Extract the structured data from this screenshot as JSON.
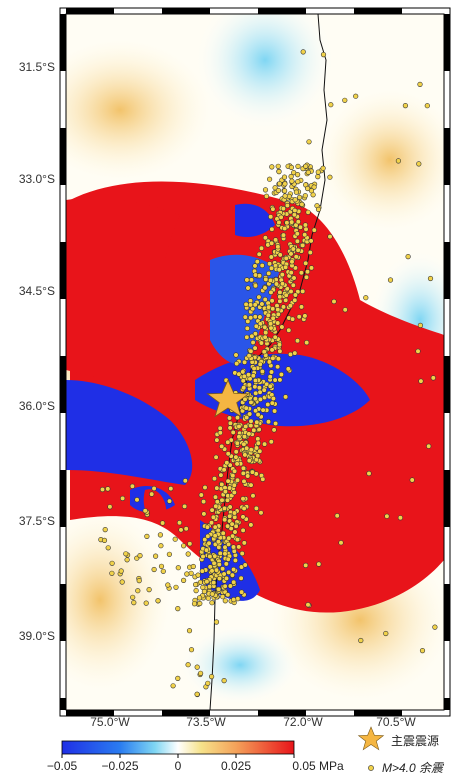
{
  "map": {
    "lat_labels": [
      "31.5°S",
      "33.0°S",
      "34.5°S",
      "36.0°S",
      "37.5°S",
      "39.0°S"
    ],
    "lon_labels": [
      "75.0°W",
      "73.5°W",
      "72.0°W",
      "70.5°W"
    ]
  },
  "colorbar": {
    "tick_labels": [
      "−0.05",
      "−0.025",
      "0",
      "0.025",
      "0.05 MPa"
    ],
    "colors": [
      "#1f2fe6",
      "#3aa0f0",
      "#ffffff",
      "#f7e26a",
      "#e8141a"
    ]
  },
  "legend": {
    "mainshock_label": "主震震源",
    "aftershock_label": "M>4.0 余震",
    "mainshock_color": "#f5b642",
    "aftershock_color": "#f1d24a"
  },
  "colors": {
    "positive": "#e8141a",
    "negative": "#1f2fe6",
    "neutral": "#ffffff"
  }
}
